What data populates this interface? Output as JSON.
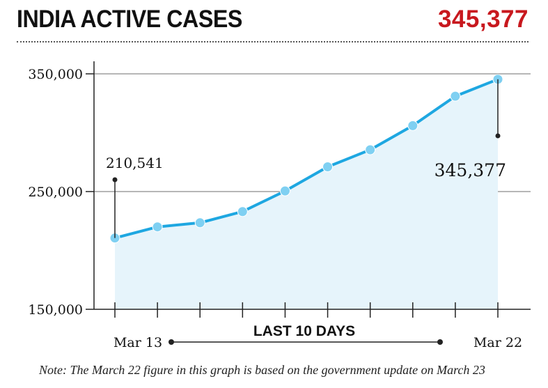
{
  "header": {
    "title": "INDIA ACTIVE CASES",
    "headline_value": "345,377"
  },
  "colors": {
    "line": "#1ea7e1",
    "marker": "#7fd0f2",
    "area": "#e6f4fb",
    "headline": "#c8181e",
    "axis": "#222222",
    "grid": "#8a8a8a"
  },
  "chart_data": {
    "type": "area",
    "title": "INDIA ACTIVE CASES",
    "subtitle": "",
    "x": [
      "Mar 13",
      "",
      "",
      "",
      "",
      "",
      "",
      "",
      "",
      "Mar 22"
    ],
    "x_range_label": "LAST 10 DAYS",
    "ylim": [
      150000,
      350000
    ],
    "yticks": [
      "350,000",
      "250,000",
      "150,000"
    ],
    "grid": "horizontal",
    "series": [
      {
        "values": [
          210541,
          220000,
          223500,
          233000,
          250500,
          271000,
          285500,
          306000,
          331000,
          345377
        ]
      }
    ],
    "annotations": [
      {
        "label": "210,541",
        "point_index": 0
      },
      {
        "label": "345,377",
        "point_index": 9
      }
    ]
  },
  "footer": {
    "note": "Note: The March 22 figure in this graph is based on the government update on March 23"
  }
}
